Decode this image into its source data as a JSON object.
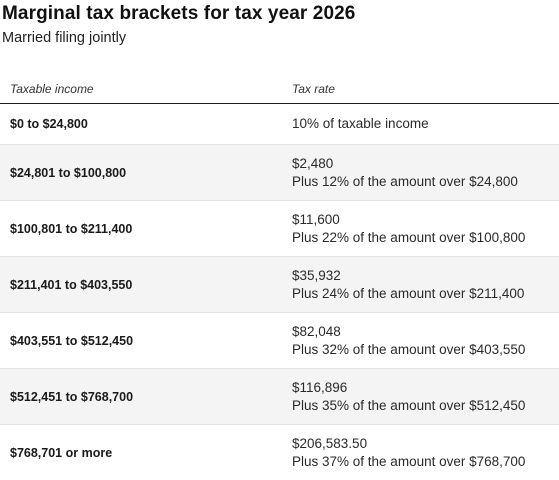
{
  "title": "Marginal tax brackets for tax year 2026",
  "subtitle": "Married filing jointly",
  "table": {
    "headers": {
      "income": "Taxable income",
      "rate": "Tax rate"
    },
    "rows": [
      {
        "income": "$0 to $24,800",
        "rate_line1": "10% of taxable income",
        "rate_line2": ""
      },
      {
        "income": "$24,801 to $100,800",
        "rate_line1": "$2,480",
        "rate_line2": "Plus 12% of the amount over $24,800"
      },
      {
        "income": "$100,801 to $211,400",
        "rate_line1": "$11,600",
        "rate_line2": "Plus 22% of the amount over $100,800"
      },
      {
        "income": "$211,401 to $403,550",
        "rate_line1": "$35,932",
        "rate_line2": "Plus 24% of the amount over $211,400"
      },
      {
        "income": "$403,551 to $512,450",
        "rate_line1": "$82,048",
        "rate_line2": "Plus 32% of the amount over $403,550"
      },
      {
        "income": "$512,451 to $768,700",
        "rate_line1": "$116,896",
        "rate_line2": "Plus 35% of the amount over $512,450"
      },
      {
        "income": "$768,701 or more",
        "rate_line1": "$206,583.50",
        "rate_line2": "Plus 37% of the amount over $768,700"
      }
    ]
  },
  "colors": {
    "row_shade": "#f4f4f4",
    "header_rule": "#1f1f1f",
    "row_rule": "#e2e2e2"
  }
}
